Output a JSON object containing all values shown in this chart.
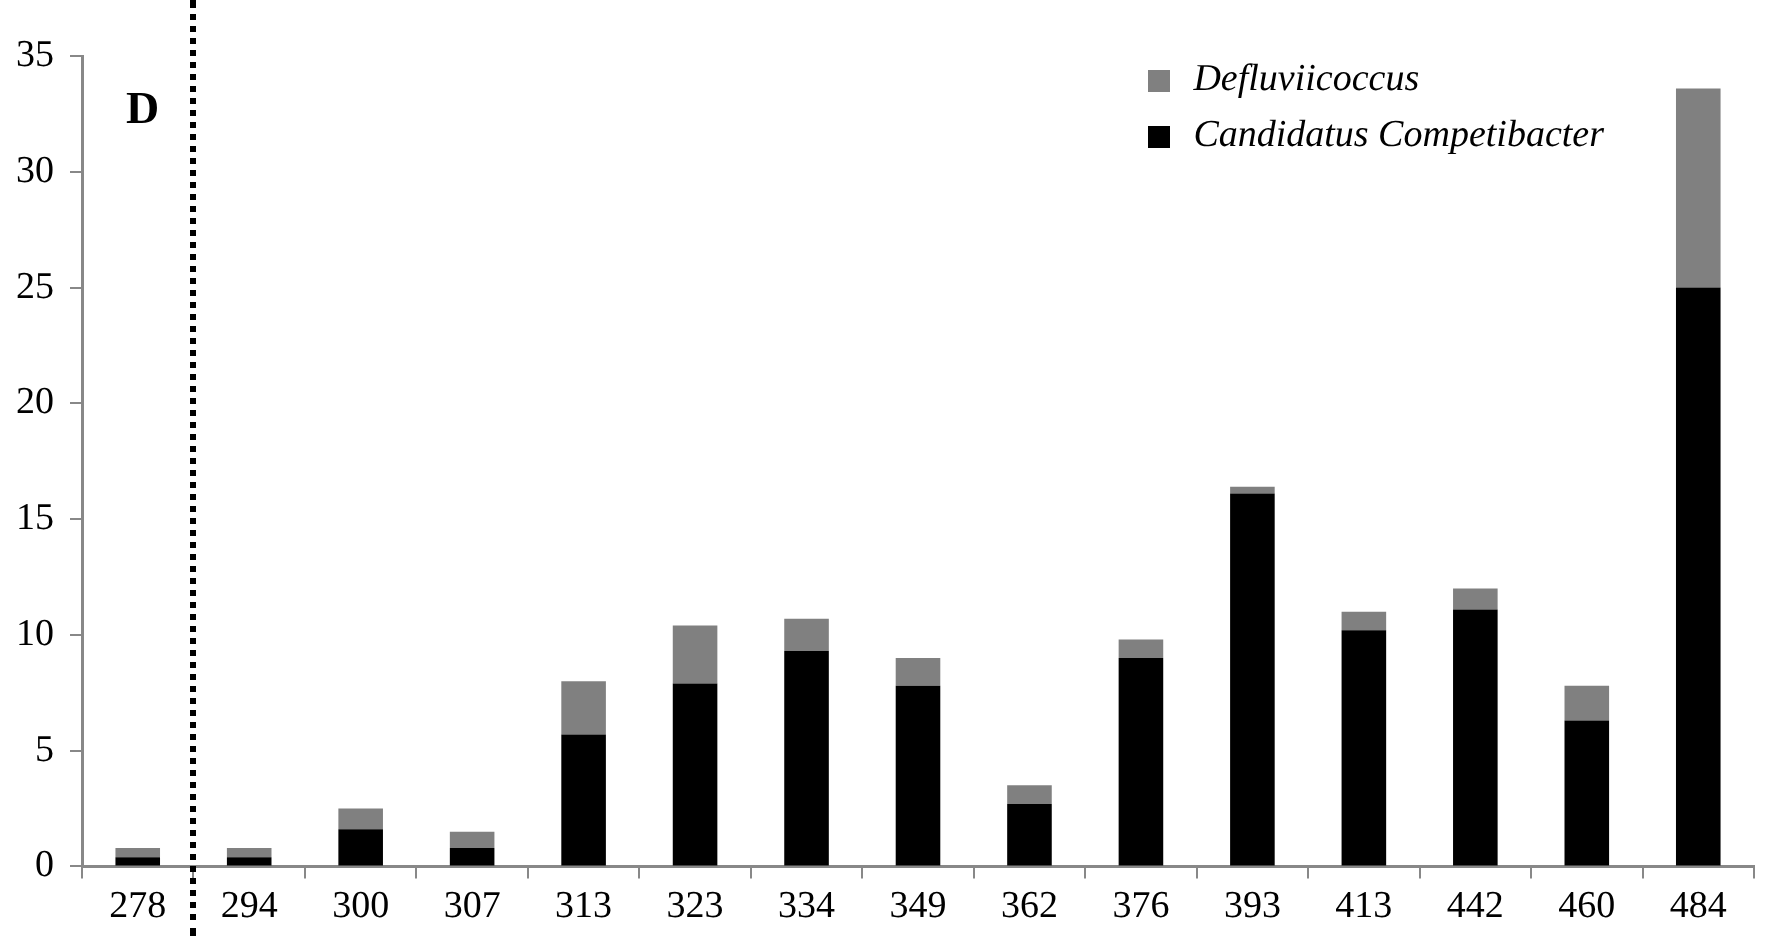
{
  "chart_data": {
    "type": "bar",
    "stacked": true,
    "categories": [
      "278",
      "294",
      "300",
      "307",
      "313",
      "323",
      "334",
      "349",
      "362",
      "376",
      "393",
      "413",
      "442",
      "460",
      "484"
    ],
    "series": [
      {
        "name": "Candidatus Competibacter",
        "color": "#000000",
        "values": [
          0.4,
          0.4,
          1.6,
          0.8,
          5.7,
          7.9,
          9.3,
          7.8,
          2.7,
          9.0,
          16.1,
          10.2,
          11.1,
          6.3,
          25.0
        ]
      },
      {
        "name": "Defluviicoccus",
        "color": "#808080",
        "values": [
          0.4,
          0.4,
          0.9,
          0.7,
          2.3,
          2.5,
          1.4,
          1.2,
          0.8,
          0.8,
          0.3,
          0.8,
          0.9,
          1.5,
          8.6
        ]
      }
    ],
    "ylim": [
      0,
      35
    ],
    "yticks": [
      0,
      5,
      10,
      15,
      20,
      25,
      30,
      35
    ],
    "grid": false,
    "legend": "top right",
    "annotations": [
      "D"
    ]
  }
}
